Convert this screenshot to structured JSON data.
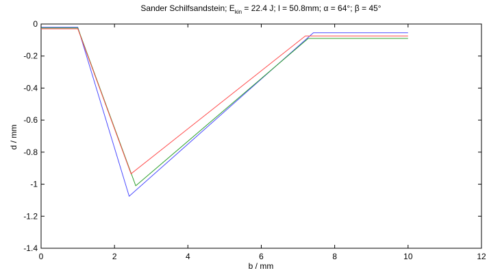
{
  "chart_data": {
    "type": "line",
    "title": {
      "prefix": "Sander Schilfsandstein; E",
      "sub": "kin",
      "suffix": " = 22.4 J; l = 50.8mm; α = 64°; β = 45°"
    },
    "xlabel": "b / mm",
    "ylabel": "d / mm",
    "xlim": [
      0,
      12
    ],
    "ylim": [
      -1.4,
      0
    ],
    "xticks": [
      0,
      2,
      4,
      6,
      8,
      10,
      12
    ],
    "xtick_labels": [
      "0",
      "2",
      "4",
      "6",
      "8",
      "10",
      "12"
    ],
    "yticks": [
      0,
      -0.2,
      -0.4,
      -0.6,
      -0.8,
      -1,
      -1.2,
      -1.4
    ],
    "ytick_labels": [
      "0",
      "-0.2",
      "-0.4",
      "-0.6",
      "-0.8",
      "-1",
      "-1.2",
      "-1.4"
    ],
    "grid": false,
    "series": [
      {
        "color": "#4a4aff",
        "x": [
          0,
          1.0,
          2.4,
          7.42,
          10.0
        ],
        "y": [
          -0.02,
          -0.02,
          -1.075,
          -0.055,
          -0.055
        ]
      },
      {
        "color": "#2ea02e",
        "x": [
          0,
          1.0,
          2.58,
          7.28,
          10.0
        ],
        "y": [
          -0.025,
          -0.025,
          -1.01,
          -0.09,
          -0.09
        ]
      },
      {
        "color": "#ff4a4a",
        "x": [
          0,
          1.0,
          2.45,
          7.2,
          10.0
        ],
        "y": [
          -0.03,
          -0.03,
          -0.935,
          -0.075,
          -0.075
        ]
      }
    ]
  }
}
